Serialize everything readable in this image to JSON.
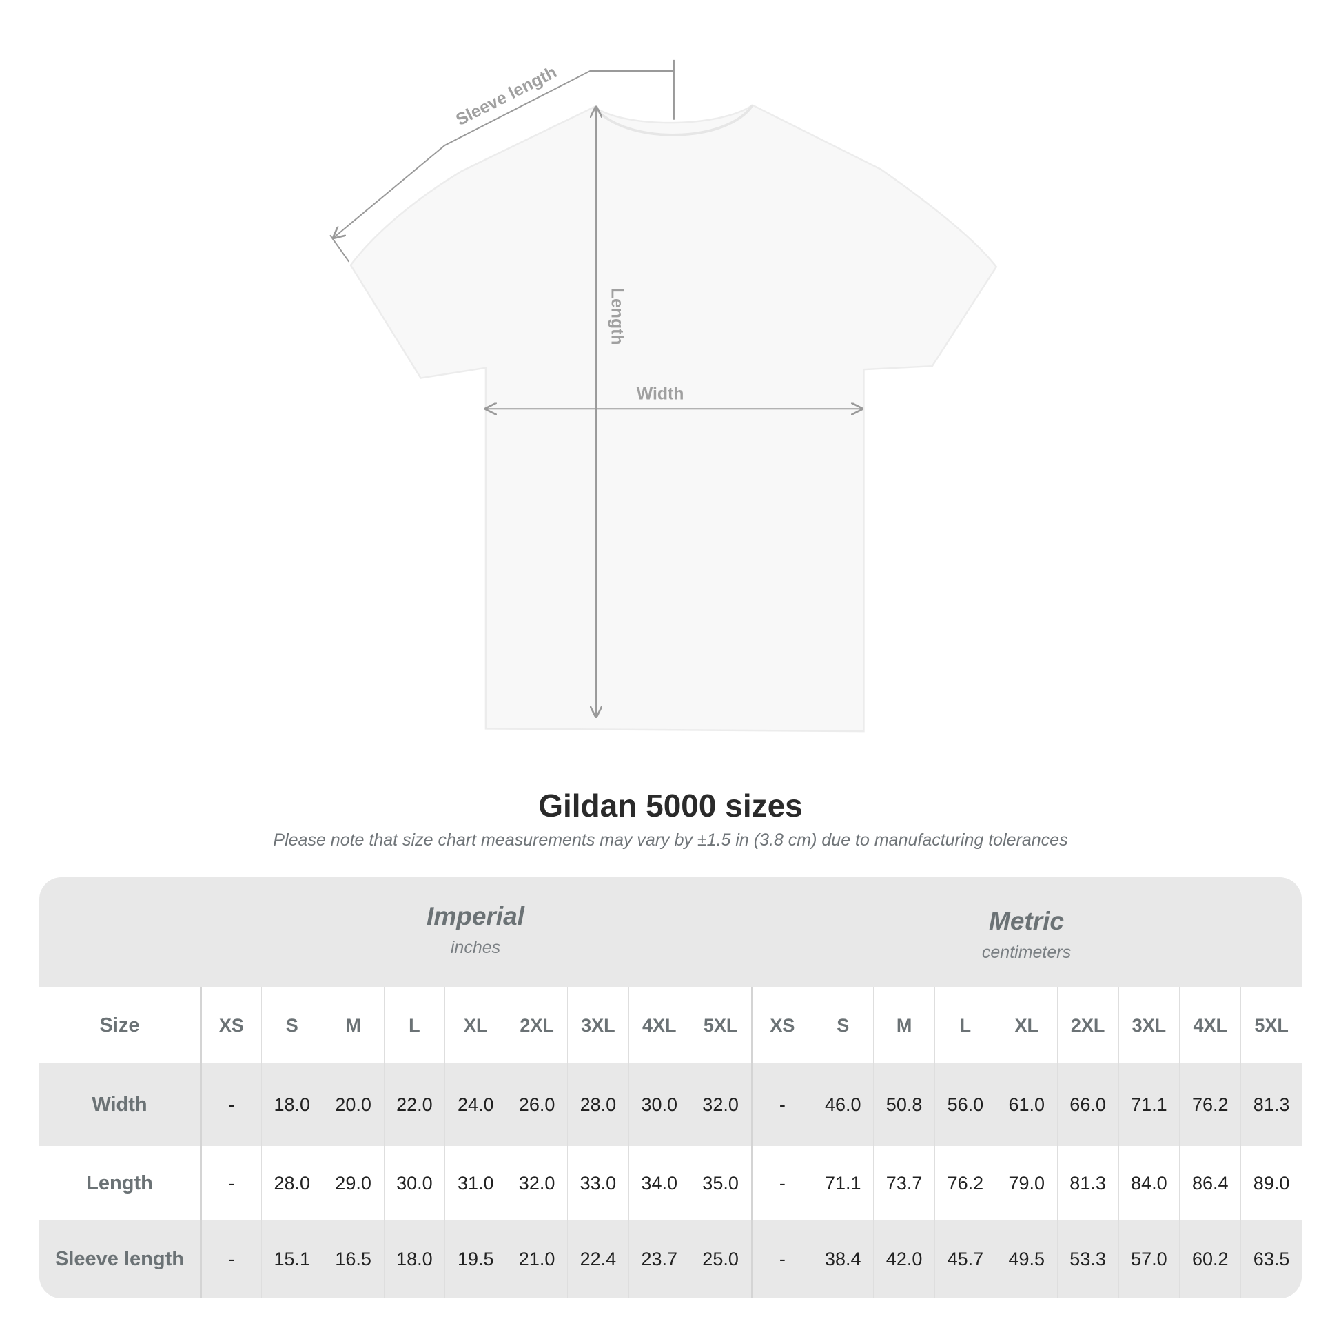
{
  "diagram": {
    "sleeve_label": "Sleeve length",
    "length_label": "Length",
    "width_label": "Width",
    "shirt_color": "#ffffff",
    "guide_color": "#9a9a9a"
  },
  "title": "Gildan 5000 sizes",
  "subtitle": "Please note that size chart measurements may vary by ±1.5 in (3.8 cm) due to manufacturing tolerances",
  "table": {
    "imperial": {
      "name": "Imperial",
      "unit": "inches"
    },
    "metric": {
      "name": "Metric",
      "unit": "centimeters"
    },
    "size_label": "Size",
    "sizes": [
      "XS",
      "S",
      "M",
      "L",
      "XL",
      "2XL",
      "3XL",
      "4XL",
      "5XL"
    ],
    "rows": [
      {
        "label": "Width",
        "imperial": [
          "-",
          "18.0",
          "20.0",
          "22.0",
          "24.0",
          "26.0",
          "28.0",
          "30.0",
          "32.0"
        ],
        "metric": [
          "-",
          "46.0",
          "50.8",
          "56.0",
          "61.0",
          "66.0",
          "71.1",
          "76.2",
          "81.3"
        ]
      },
      {
        "label": "Length",
        "imperial": [
          "-",
          "28.0",
          "29.0",
          "30.0",
          "31.0",
          "32.0",
          "33.0",
          "34.0",
          "35.0"
        ],
        "metric": [
          "-",
          "71.1",
          "73.7",
          "76.2",
          "79.0",
          "81.3",
          "84.0",
          "86.4",
          "89.0"
        ]
      },
      {
        "label": "Sleeve length",
        "imperial": [
          "-",
          "15.1",
          "16.5",
          "18.0",
          "19.5",
          "21.0",
          "22.4",
          "23.7",
          "25.0"
        ],
        "metric": [
          "-",
          "38.4",
          "42.0",
          "45.7",
          "49.5",
          "53.3",
          "57.0",
          "60.2",
          "63.5"
        ]
      }
    ]
  }
}
